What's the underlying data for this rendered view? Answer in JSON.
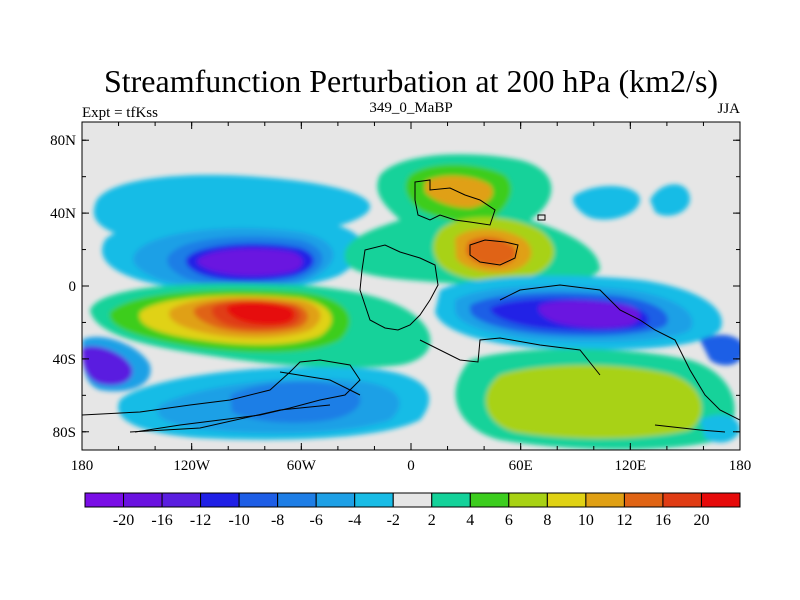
{
  "chart_data": {
    "type": "heatmap",
    "title": "Streamfunction Perturbation at 200 hPa (km2/s)",
    "subtitle_left": "Expt = tfKss",
    "subtitle_center": "349_0_MaBP",
    "subtitle_right": "JJA",
    "x_ticks": [
      "180",
      "120W",
      "60W",
      "0",
      "60E",
      "120E",
      "180"
    ],
    "y_ticks": [
      "80N",
      "40N",
      "0",
      "40S",
      "80S"
    ],
    "xlim": [
      -180,
      180
    ],
    "ylim": [
      -90,
      90
    ],
    "colorbar_levels": [
      "-20",
      "-16",
      "-12",
      "-10",
      "-8",
      "-6",
      "-4",
      "-2",
      "2",
      "4",
      "6",
      "8",
      "10",
      "12",
      "16",
      "20"
    ],
    "colors": [
      "#7a0ee6",
      "#6a12e0",
      "#5a1ee0",
      "#2020e6",
      "#1e5ee6",
      "#1e7ee6",
      "#1ea0e6",
      "#19bce6",
      "#e6e6e6",
      "#14d29a",
      "#3ccd1e",
      "#a8d214",
      "#e0d214",
      "#e0a014",
      "#e06414",
      "#e03c14",
      "#e60a0a"
    ]
  }
}
